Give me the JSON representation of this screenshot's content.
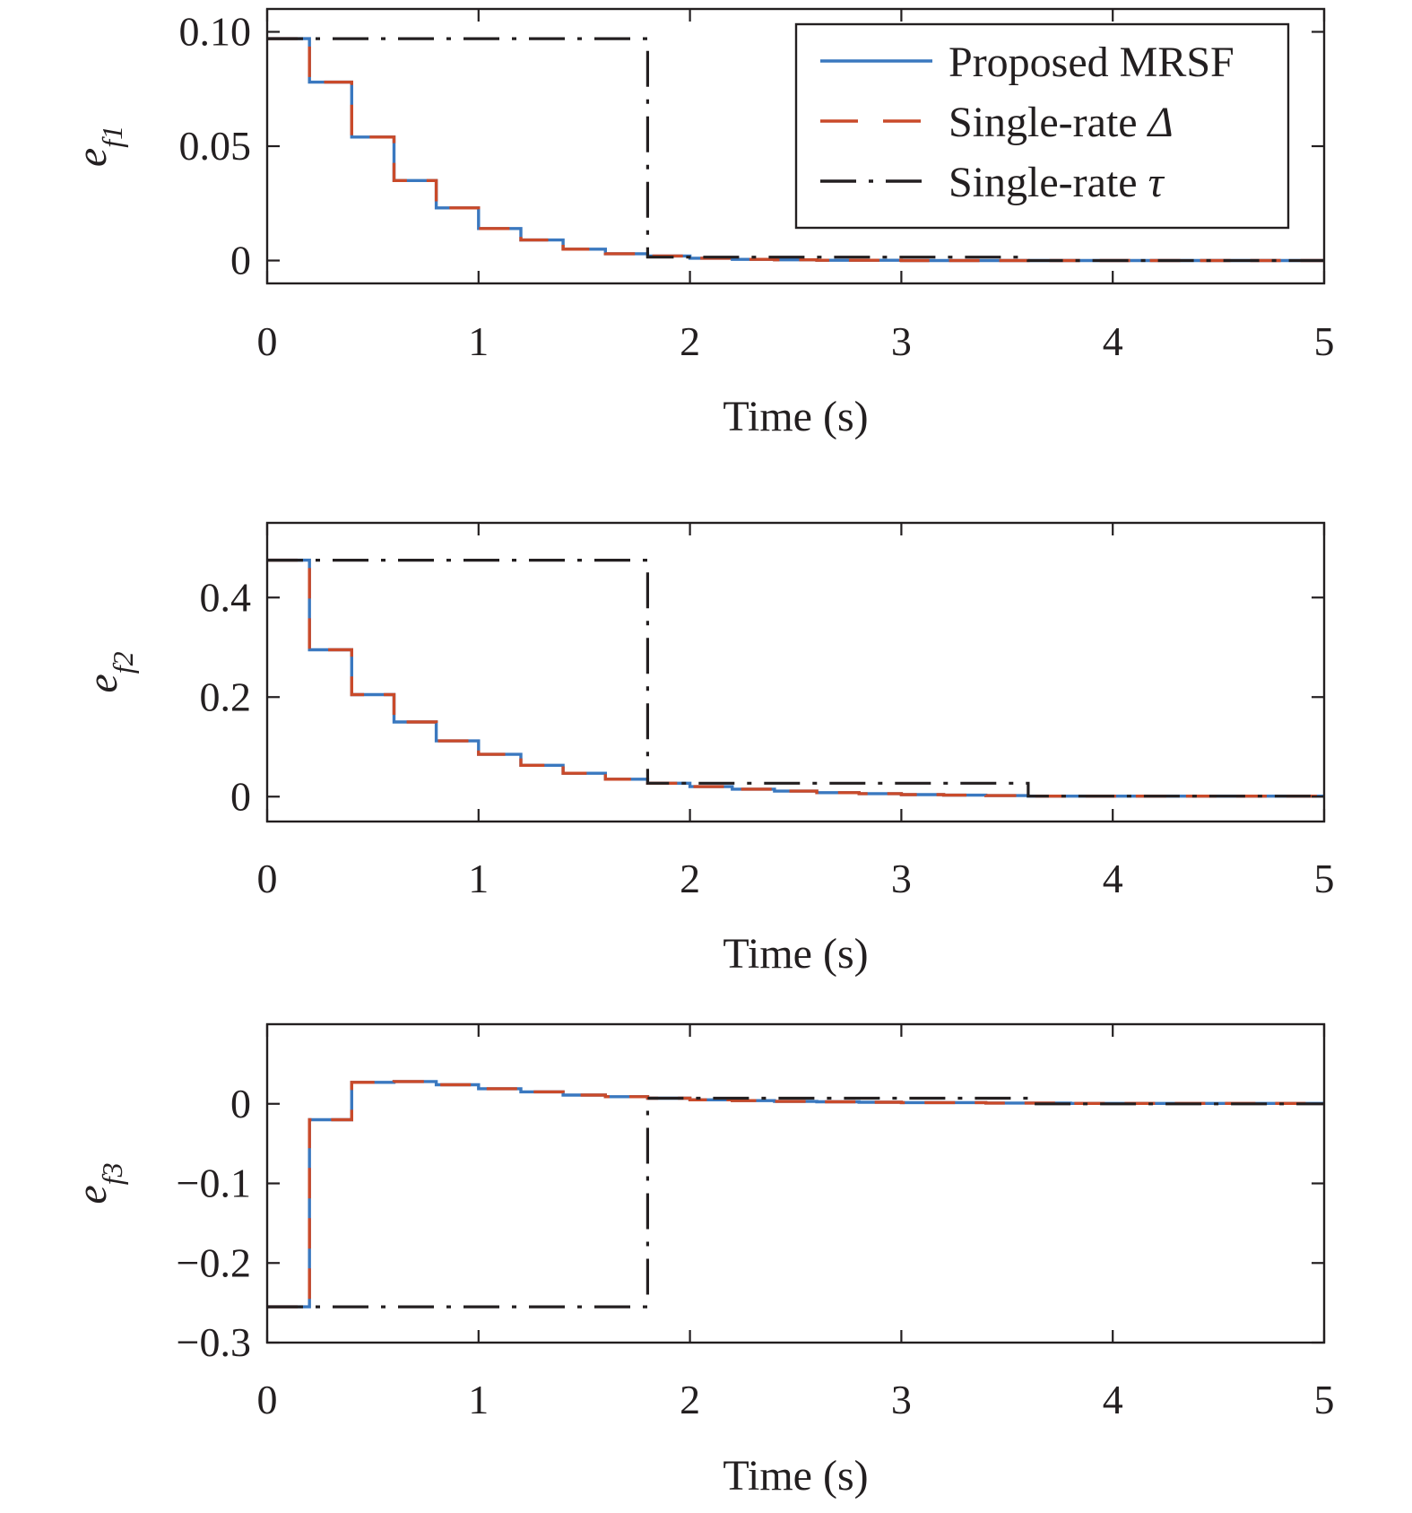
{
  "chart_data": [
    {
      "type": "line",
      "xlabel": "Time (s)",
      "ylabel": "e_f1",
      "ylabel_main": "e",
      "ylabel_sub": "f1",
      "xlim": [
        0,
        5
      ],
      "ylim": [
        -0.01,
        0.11
      ],
      "xticks": [
        "0",
        "1",
        "2",
        "3",
        "4",
        "5"
      ],
      "yticks": [
        {
          "value": 0,
          "label": "0"
        },
        {
          "value": 0.05,
          "label": "0.05"
        },
        {
          "value": 0.1,
          "label": "0.10"
        }
      ],
      "legend": {
        "position": "top-right",
        "entries": [
          {
            "label": "Proposed MRSF",
            "style": "solid",
            "color": "#3a78bf"
          },
          {
            "label": "Single-rate ",
            "symbol": "Δ",
            "style": "dashed",
            "color": "#c94a2a"
          },
          {
            "label": "Single-rate ",
            "symbol": "τ",
            "style": "dashdot",
            "color": "#231f20"
          }
        ]
      },
      "series": [
        {
          "name": "Proposed MRSF",
          "color": "#3a78bf",
          "style": "solid",
          "x": [
            0,
            0.2,
            0.4,
            0.6,
            0.8,
            1.0,
            1.2,
            1.4,
            1.6,
            1.8,
            2.0,
            2.2,
            2.4,
            2.6,
            3.0,
            5.0
          ],
          "y": [
            0.097,
            0.078,
            0.054,
            0.035,
            0.023,
            0.014,
            0.009,
            0.005,
            0.003,
            0.002,
            0.001,
            0.0005,
            0.0003,
            0.0001,
            0.0,
            0.0
          ]
        },
        {
          "name": "Single-rate Δ",
          "color": "#c94a2a",
          "style": "dashed",
          "x": [
            0,
            0.2,
            0.4,
            0.6,
            0.8,
            1.0,
            1.2,
            1.4,
            1.6,
            1.8,
            2.0,
            2.2,
            2.4,
            2.6,
            3.0,
            5.0
          ],
          "y": [
            0.097,
            0.078,
            0.054,
            0.035,
            0.023,
            0.014,
            0.009,
            0.005,
            0.003,
            0.002,
            0.001,
            0.0005,
            0.0003,
            0.0001,
            0.0,
            0.0
          ]
        },
        {
          "name": "Single-rate τ",
          "color": "#231f20",
          "style": "dashdot",
          "x": [
            0,
            1.8,
            3.6,
            5.0
          ],
          "y": [
            0.097,
            0.0015,
            0.0,
            0.0
          ]
        }
      ]
    },
    {
      "type": "line",
      "xlabel": "Time (s)",
      "ylabel": "e_f2",
      "ylabel_main": "e",
      "ylabel_sub": "f2",
      "xlim": [
        0,
        5
      ],
      "ylim": [
        -0.05,
        0.55
      ],
      "xticks": [
        "0",
        "1",
        "2",
        "3",
        "4",
        "5"
      ],
      "yticks": [
        {
          "value": 0,
          "label": "0"
        },
        {
          "value": 0.2,
          "label": "0.2"
        },
        {
          "value": 0.4,
          "label": "0.4"
        }
      ],
      "series": [
        {
          "name": "Proposed MRSF",
          "color": "#3a78bf",
          "style": "solid",
          "x": [
            0,
            0.2,
            0.4,
            0.6,
            0.8,
            1.0,
            1.2,
            1.4,
            1.6,
            1.8,
            2.0,
            2.2,
            2.4,
            2.6,
            2.8,
            3.0,
            3.2,
            3.4,
            3.6,
            5.0
          ],
          "y": [
            0.475,
            0.295,
            0.205,
            0.15,
            0.112,
            0.085,
            0.063,
            0.047,
            0.035,
            0.027,
            0.02,
            0.015,
            0.011,
            0.008,
            0.006,
            0.004,
            0.003,
            0.002,
            0.001,
            0.0
          ]
        },
        {
          "name": "Single-rate Δ",
          "color": "#c94a2a",
          "style": "dashed",
          "x": [
            0,
            0.2,
            0.4,
            0.6,
            0.8,
            1.0,
            1.2,
            1.4,
            1.6,
            1.8,
            2.0,
            2.2,
            2.4,
            2.6,
            2.8,
            3.0,
            3.2,
            3.4,
            3.6,
            5.0
          ],
          "y": [
            0.475,
            0.295,
            0.205,
            0.15,
            0.112,
            0.085,
            0.063,
            0.047,
            0.035,
            0.027,
            0.02,
            0.015,
            0.011,
            0.008,
            0.006,
            0.004,
            0.003,
            0.002,
            0.001,
            0.0
          ]
        },
        {
          "name": "Single-rate τ",
          "color": "#231f20",
          "style": "dashdot",
          "x": [
            0,
            1.8,
            3.6,
            5.0
          ],
          "y": [
            0.475,
            0.027,
            0.001,
            0.001
          ]
        }
      ]
    },
    {
      "type": "line",
      "xlabel": "Time (s)",
      "ylabel": "e_f3",
      "ylabel_main": "e",
      "ylabel_sub": "f3",
      "xlim": [
        0,
        5
      ],
      "ylim": [
        -0.3,
        0.1
      ],
      "xticks": [
        "0",
        "1",
        "2",
        "3",
        "4",
        "5"
      ],
      "yticks": [
        {
          "value": -0.3,
          "label": "−0.3"
        },
        {
          "value": -0.2,
          "label": "−0.2"
        },
        {
          "value": -0.1,
          "label": "−0.1"
        },
        {
          "value": 0,
          "label": "0"
        }
      ],
      "series": [
        {
          "name": "Proposed MRSF",
          "color": "#3a78bf",
          "style": "solid",
          "x": [
            0,
            0.2,
            0.4,
            0.6,
            0.8,
            1.0,
            1.2,
            1.4,
            1.6,
            1.8,
            2.0,
            2.2,
            2.4,
            2.6,
            2.8,
            3.0,
            3.4,
            3.8,
            5.0
          ],
          "y": [
            -0.255,
            -0.02,
            0.027,
            0.028,
            0.024,
            0.019,
            0.015,
            0.011,
            0.009,
            0.007,
            0.005,
            0.004,
            0.003,
            0.0025,
            0.002,
            0.0015,
            0.001,
            0.0005,
            0.0
          ]
        },
        {
          "name": "Single-rate Δ",
          "color": "#c94a2a",
          "style": "dashed",
          "x": [
            0,
            0.2,
            0.4,
            0.6,
            0.8,
            1.0,
            1.2,
            1.4,
            1.6,
            1.8,
            2.0,
            2.2,
            2.4,
            2.6,
            2.8,
            3.0,
            3.4,
            3.8,
            5.0
          ],
          "y": [
            -0.255,
            -0.02,
            0.027,
            0.028,
            0.024,
            0.019,
            0.015,
            0.011,
            0.009,
            0.007,
            0.005,
            0.004,
            0.003,
            0.0025,
            0.002,
            0.0015,
            0.001,
            0.0005,
            0.0
          ]
        },
        {
          "name": "Single-rate τ",
          "color": "#231f20",
          "style": "dashdot",
          "x": [
            0,
            1.8,
            3.6,
            5.0
          ],
          "y": [
            -0.255,
            0.007,
            0.0,
            0.0
          ]
        }
      ]
    }
  ]
}
